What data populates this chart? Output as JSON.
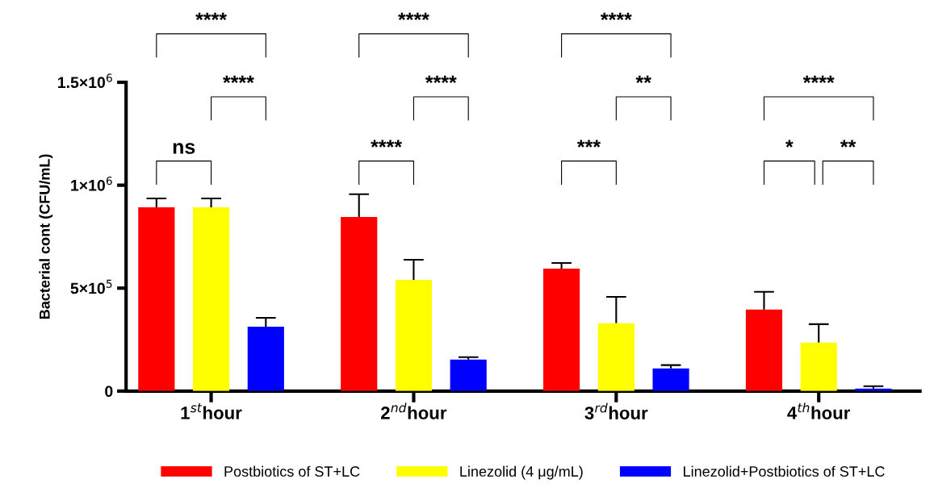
{
  "chart_data": {
    "type": "bar",
    "ylabel": "Bacterial cont (CFU/mL)",
    "categories": [
      "1$^{st}$hour",
      "2$^{nd}$hour",
      "3$^{rd}$hour",
      "4$^{th}$hour"
    ],
    "series": [
      {
        "name": "Postbiotics of ST+LC",
        "color": "#ff0000",
        "values": [
          893000,
          846000,
          595000,
          396000
        ],
        "errors": [
          [
            893000,
            936000
          ],
          [
            846000,
            956000
          ],
          [
            595000,
            622000
          ],
          [
            396000,
            482000
          ]
        ]
      },
      {
        "name": "Linezolid (4 μg/mL)",
        "color": "#ffff00",
        "values": [
          893000,
          540000,
          329000,
          235000
        ],
        "errors": [
          [
            893000,
            936000
          ],
          [
            540000,
            638000
          ],
          [
            329000,
            458000
          ],
          [
            235000,
            325000
          ]
        ]
      },
      {
        "name": "Linezolid+Postbiotics of ST+LC",
        "color": "#0000ff",
        "values": [
          313000,
          153000,
          110000,
          12000
        ],
        "errors": [
          [
            313000,
            356000
          ],
          [
            153000,
            165000
          ],
          [
            110000,
            126000
          ],
          [
            12000,
            24000
          ]
        ]
      }
    ],
    "ylim": [
      0,
      1500000
    ],
    "yticks": [
      0,
      {
        "value": 500000,
        "label": "5×10$^{5}$"
      },
      {
        "value": 1000000,
        "label": "1×10$^{6}$"
      },
      {
        "value": 1500000,
        "label": "1.5×10$^{6}$"
      }
    ],
    "annotations": [
      "ns",
      "****",
      "****",
      "****",
      "****",
      "****",
      "***",
      "**",
      "****",
      "*",
      "**",
      "****"
    ],
    "legend": "bottom",
    "grid": false
  }
}
